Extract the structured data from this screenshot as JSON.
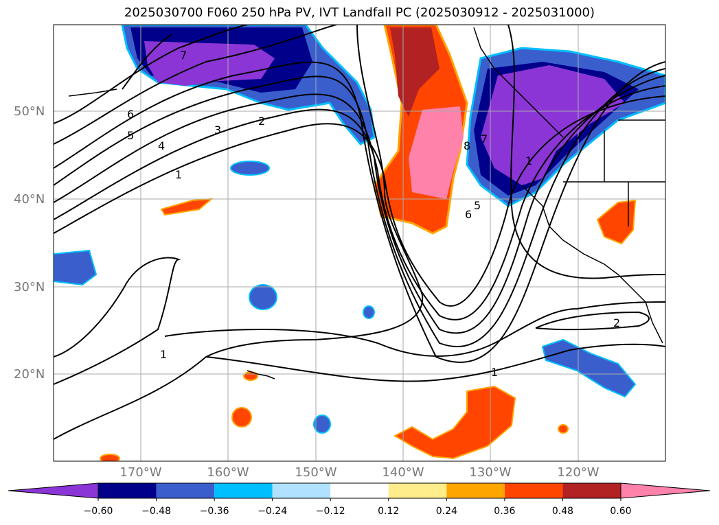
{
  "title": "2025030700 F060 250 hPa PV, IVT Landfall PC (2025030912 - 2025031000)",
  "lat_labels": [
    "50°N",
    "40°N",
    "30°N",
    "20°N"
  ],
  "lon_labels": [
    "170°W",
    "160°W",
    "150°W",
    "140°W",
    "130°W",
    "120°W"
  ],
  "colorbar": {
    "ticks": [
      "−0.60",
      "−0.48",
      "−0.36",
      "−0.24",
      "−0.12",
      "0.12",
      "0.24",
      "0.36",
      "0.48",
      "0.60"
    ],
    "colors": [
      "#8b35d6",
      "#00008b",
      "#3a5fcd",
      "#00bfff",
      "#b0e2ff",
      "#ffffff",
      "#ffec8b",
      "#ffa500",
      "#ff4500",
      "#b22222",
      "#ff82ab"
    ]
  },
  "contour_labels": [
    "7",
    "6",
    "5",
    "4",
    "3",
    "2",
    "1",
    "8",
    "7",
    "6",
    "5",
    "1",
    "1",
    "2",
    "1"
  ]
}
